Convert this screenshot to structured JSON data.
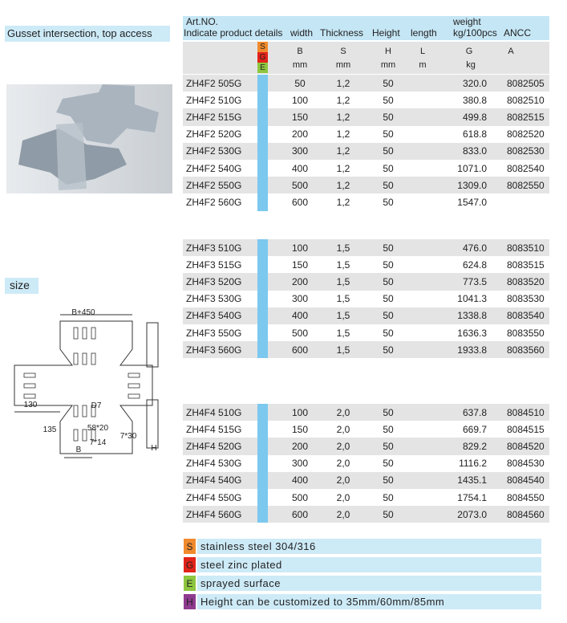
{
  "product_title": "Gusset intersection, top access",
  "size_label": "size",
  "drawing_labels": [
    "B+450",
    "130",
    "135",
    "D7",
    "58*20",
    "7*30",
    "7*14",
    "B",
    "H"
  ],
  "table": {
    "header": {
      "art_no": "Art.NO.",
      "details": "Indicate product details",
      "width": "width",
      "thickness": "Thickness",
      "height": "Height",
      "length": "length",
      "weight": "weight",
      "weight_unit": "kg/100pcs",
      "ancc": "ANCC"
    },
    "subheader": {
      "finish_codes": [
        "S",
        "G",
        "E"
      ],
      "symbols": [
        "B",
        "S",
        "H",
        "L",
        "G",
        "A"
      ],
      "units": [
        "mm",
        "mm",
        "mm",
        "m",
        "kg"
      ]
    },
    "sections": [
      [
        [
          "ZH4F2 505G",
          "50",
          "1,2",
          "50",
          "320.0",
          "8082505"
        ],
        [
          "ZH4F2 510G",
          "100",
          "1,2",
          "50",
          "380.8",
          "8082510"
        ],
        [
          "ZH4F2 515G",
          "150",
          "1,2",
          "50",
          "499.8",
          "8082515"
        ],
        [
          "ZH4F2 520G",
          "200",
          "1,2",
          "50",
          "618.8",
          "8082520"
        ],
        [
          "ZH4F2 530G",
          "300",
          "1,2",
          "50",
          "833.0",
          "8082530"
        ],
        [
          "ZH4F2 540G",
          "400",
          "1,2",
          "50",
          "1071.0",
          "8082540"
        ],
        [
          "ZH4F2 550G",
          "500",
          "1,2",
          "50",
          "1309.0",
          "8082550"
        ],
        [
          "ZH4F2 560G",
          "600",
          "1,2",
          "50",
          "1547.0"
        ]
      ],
      [
        [
          "ZH4F3 510G",
          "100",
          "1,5",
          "50",
          "476.0",
          "8083510"
        ],
        [
          "ZH4F3 515G",
          "150",
          "1,5",
          "50",
          "624.8",
          "8083515"
        ],
        [
          "ZH4F3 520G",
          "200",
          "1,5",
          "50",
          "773.5",
          "8083520"
        ],
        [
          "ZH4F3 530G",
          "300",
          "1,5",
          "50",
          "1041.3",
          "8083530"
        ],
        [
          "ZH4F3 540G",
          "400",
          "1,5",
          "50",
          "1338.8",
          "8083540"
        ],
        [
          "ZH4F3 550G",
          "500",
          "1,5",
          "50",
          "1636.3",
          "8083550"
        ],
        [
          "ZH4F3 560G",
          "600",
          "1,5",
          "50",
          "1933.8",
          "8083560"
        ]
      ],
      [
        [
          "ZH4F4 510G",
          "100",
          "2,0",
          "50",
          "637.8",
          "8084510"
        ],
        [
          "ZH4F4 515G",
          "150",
          "2,0",
          "50",
          "669.7",
          "8084515"
        ],
        [
          "ZH4F4 520G",
          "200",
          "2,0",
          "50",
          "829.2",
          "8084520"
        ],
        [
          "ZH4F4 530G",
          "300",
          "2,0",
          "50",
          "1116.2",
          "8084530"
        ],
        [
          "ZH4F4 540G",
          "400",
          "2,0",
          "50",
          "1435.1",
          "8084540"
        ],
        [
          "ZH4F4 550G",
          "500",
          "2,0",
          "50",
          "1754.1",
          "8084550"
        ],
        [
          "ZH4F4 560G",
          "600",
          "2,0",
          "50",
          "2073.0",
          "8084560"
        ]
      ]
    ]
  },
  "legend": [
    {
      "code": "S",
      "text": "stainless steel 304/316"
    },
    {
      "code": "G",
      "text": "steel zinc plated"
    },
    {
      "code": "E",
      "text": "sprayed surface"
    },
    {
      "code": "H",
      "text": "Height can be customized to 35mm/60mm/85mm"
    }
  ]
}
